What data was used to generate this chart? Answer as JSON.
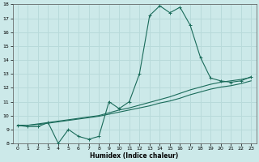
{
  "xlabel": "Humidex (Indice chaleur)",
  "xlim": [
    -0.5,
    23.5
  ],
  "ylim": [
    8,
    18
  ],
  "yticks": [
    8,
    9,
    10,
    11,
    12,
    13,
    14,
    15,
    16,
    17,
    18
  ],
  "xticks": [
    0,
    1,
    2,
    3,
    4,
    5,
    6,
    7,
    8,
    9,
    10,
    11,
    12,
    13,
    14,
    15,
    16,
    17,
    18,
    19,
    20,
    21,
    22,
    23
  ],
  "bg_color": "#cce9e9",
  "line_color": "#1a6b5a",
  "grid_color": "#b8dada",
  "series1_x": [
    0,
    1,
    2,
    3,
    4,
    5,
    6,
    7,
    8,
    9,
    10,
    11,
    12,
    13,
    14,
    15,
    16,
    17,
    18,
    19,
    20,
    21,
    22,
    23
  ],
  "series1_y": [
    9.3,
    9.2,
    9.2,
    9.5,
    8.0,
    9.0,
    8.5,
    8.3,
    8.5,
    11.0,
    10.5,
    11.0,
    13.0,
    17.2,
    17.9,
    17.4,
    17.8,
    16.5,
    14.2,
    12.7,
    12.5,
    12.4,
    12.5,
    12.8
  ],
  "series2_x": [
    0,
    1,
    2,
    3,
    4,
    5,
    6,
    7,
    8,
    9,
    10,
    11,
    12,
    13,
    14,
    15,
    16,
    17,
    18,
    19,
    20,
    21,
    22,
    23
  ],
  "series2_y": [
    9.3,
    9.3,
    9.4,
    9.5,
    9.6,
    9.7,
    9.8,
    9.9,
    10.0,
    10.2,
    10.4,
    10.55,
    10.75,
    10.95,
    11.15,
    11.35,
    11.6,
    11.85,
    12.05,
    12.25,
    12.4,
    12.5,
    12.6,
    12.75
  ],
  "series3_x": [
    0,
    1,
    2,
    3,
    4,
    5,
    6,
    7,
    8,
    9,
    10,
    11,
    12,
    13,
    14,
    15,
    16,
    17,
    18,
    19,
    20,
    21,
    22,
    23
  ],
  "series3_y": [
    9.3,
    9.3,
    9.35,
    9.45,
    9.55,
    9.65,
    9.75,
    9.85,
    9.95,
    10.1,
    10.25,
    10.4,
    10.55,
    10.7,
    10.9,
    11.05,
    11.25,
    11.5,
    11.7,
    11.9,
    12.05,
    12.15,
    12.3,
    12.5
  ]
}
